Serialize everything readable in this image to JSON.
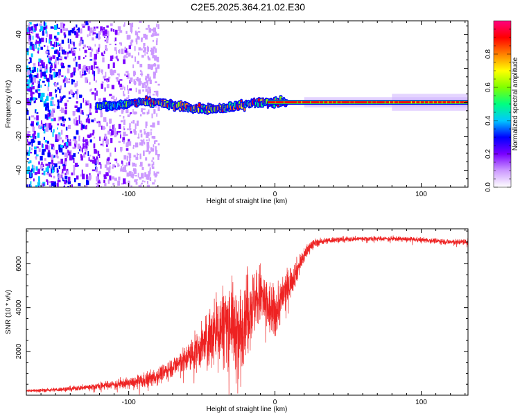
{
  "figure": {
    "title": "C2E5.2025.364.21.02.E30"
  },
  "chart_data": [
    {
      "type": "heatmap",
      "title": "C2E5.2025.364.21.02.E30",
      "xlabel": "Height of straight line (km)",
      "ylabel": "Frequency (Hz)",
      "xlim": [
        -170,
        132
      ],
      "ylim": [
        -50,
        48
      ],
      "xticks": [
        -100,
        0,
        100
      ],
      "yticks": [
        -40,
        -20,
        0,
        20,
        40
      ],
      "xtick_labels": [
        "-100",
        "0",
        "100"
      ],
      "ytick_labels": [
        "-40",
        "-20",
        "0",
        "20",
        "40"
      ],
      "ridge": {
        "x": [
          -120,
          -110,
          -100,
          -90,
          -80,
          -70,
          -60,
          -50,
          -40,
          -30,
          -20,
          -10,
          0,
          10,
          40,
          80,
          132
        ],
        "freq": [
          -2,
          -2,
          -1,
          0,
          0,
          -2,
          -3,
          -4,
          -4,
          -3,
          -1,
          0,
          0,
          0,
          0,
          0,
          0
        ]
      },
      "noise_band_x": [
        -170,
        -80
      ],
      "colorbar": {
        "label": "Normalized spectral amplitude",
        "range": [
          0,
          1
        ],
        "ticks": [
          0.0,
          0.2,
          0.4,
          0.6,
          0.8
        ],
        "tick_labels": [
          "0.0",
          "0.2",
          "0.4",
          "0.6",
          "0.8"
        ],
        "colors": [
          "#ffffff",
          "#cc99ff",
          "#7a00ff",
          "#0000ff",
          "#00c8ff",
          "#00ff80",
          "#80ff00",
          "#ffff00",
          "#ff8000",
          "#ff0000",
          "#ff0080"
        ]
      }
    },
    {
      "type": "line",
      "xlabel": "Height of straight line (km)",
      "ylabel": "SNR (10 * v/v)",
      "xlim": [
        -170,
        132
      ],
      "ylim": [
        0,
        7600
      ],
      "xticks": [
        -100,
        0,
        100
      ],
      "yticks": [
        2000,
        4000,
        6000
      ],
      "xtick_labels": [
        "-100",
        "0",
        "100"
      ],
      "ytick_labels": [
        "2000",
        "4000",
        "6000"
      ],
      "series": [
        {
          "name": "SNR",
          "color": "#ee2222",
          "x": [
            -170,
            -150,
            -130,
            -110,
            -100,
            -90,
            -80,
            -70,
            -60,
            -50,
            -45,
            -40,
            -35,
            -30,
            -25,
            -20,
            -15,
            -10,
            -5,
            0,
            5,
            10,
            15,
            20,
            25,
            30,
            40,
            60,
            80,
            100,
            120,
            132
          ],
          "y": [
            200,
            250,
            350,
            500,
            550,
            650,
            900,
            1300,
            1700,
            2200,
            2600,
            3000,
            3200,
            3500,
            2500,
            3900,
            4200,
            4600,
            4000,
            3700,
            4500,
            5100,
            5700,
            6400,
            6900,
            7000,
            7100,
            7150,
            7150,
            7100,
            7000,
            7000
          ],
          "noise_amplitude": [
            60,
            80,
            120,
            180,
            220,
            300,
            350,
            400,
            600,
            900,
            1200,
            1500,
            1700,
            1600,
            2000,
            1700,
            1500,
            1300,
            1200,
            1100,
            900,
            700,
            500,
            350,
            200,
            150,
            120,
            100,
            100,
            100,
            120,
            130
          ]
        }
      ]
    }
  ]
}
